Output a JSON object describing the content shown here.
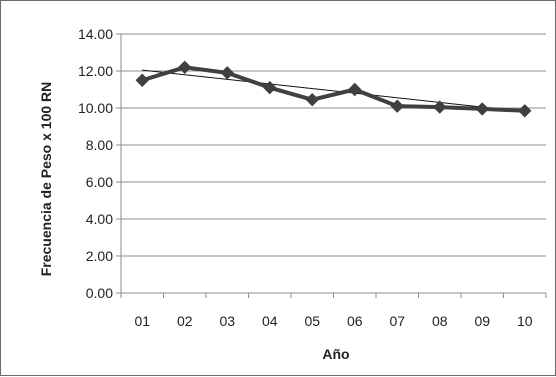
{
  "chart_data": {
    "type": "line",
    "title": "",
    "xlabel": "Año",
    "ylabel": "Frecuencia de Peso x 100 RN",
    "categories": [
      "01",
      "02",
      "03",
      "04",
      "05",
      "06",
      "07",
      "08",
      "09",
      "10"
    ],
    "yticks": [
      "0.00",
      "2.00",
      "4.00",
      "6.00",
      "8.00",
      "10.00",
      "12.00",
      "14.00"
    ],
    "ylim": [
      0,
      14
    ],
    "grid": true,
    "legend": "none",
    "series": [
      {
        "values": [
          11.5,
          12.2,
          11.9,
          11.1,
          10.45,
          11.0,
          10.1,
          10.05,
          9.95,
          9.85
        ],
        "color": "#404040",
        "marker": "diamond"
      }
    ],
    "trendline": {
      "type": "linear",
      "start": 12.05,
      "end": 9.8,
      "color": "#111111"
    }
  }
}
